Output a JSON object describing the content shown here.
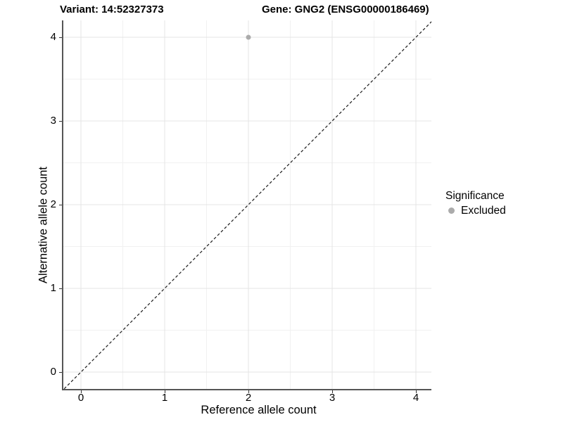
{
  "figure": {
    "title_variant": "Variant: 14:52327373",
    "title_gene": "Gene: GNG2 (ENSG00000186469)"
  },
  "axes": {
    "x_label": "Reference allele count",
    "y_label": "Alternative allele count"
  },
  "legend": {
    "title": "Significance",
    "items": [
      {
        "label": "Excluded",
        "color": "#ababab"
      }
    ]
  },
  "chart_data": {
    "type": "scatter",
    "title": "Variant: 14:52327373 | Gene: GNG2 (ENSG00000186469)",
    "xlabel": "Reference allele count",
    "ylabel": "Alternative allele count",
    "xticks": [
      0,
      1,
      2,
      3,
      4
    ],
    "yticks": [
      0,
      1,
      2,
      3,
      4
    ],
    "xlim": [
      -0.2,
      4.2
    ],
    "ylim": [
      -0.2,
      4.2
    ],
    "grid": "major+minor",
    "legend_position": "right",
    "series": [
      {
        "name": "Excluded",
        "color": "#ababab",
        "points": [
          {
            "x": 2,
            "y": 4
          }
        ]
      }
    ],
    "reference_line": {
      "type": "identity y=x",
      "style": "dashed",
      "color": "#1a1a1a"
    },
    "style_colors": {
      "grid_major": "#e4e4e4",
      "grid_minor": "#f1f1f1",
      "axis_line": "#555555",
      "tick_mark": "#333333"
    }
  }
}
